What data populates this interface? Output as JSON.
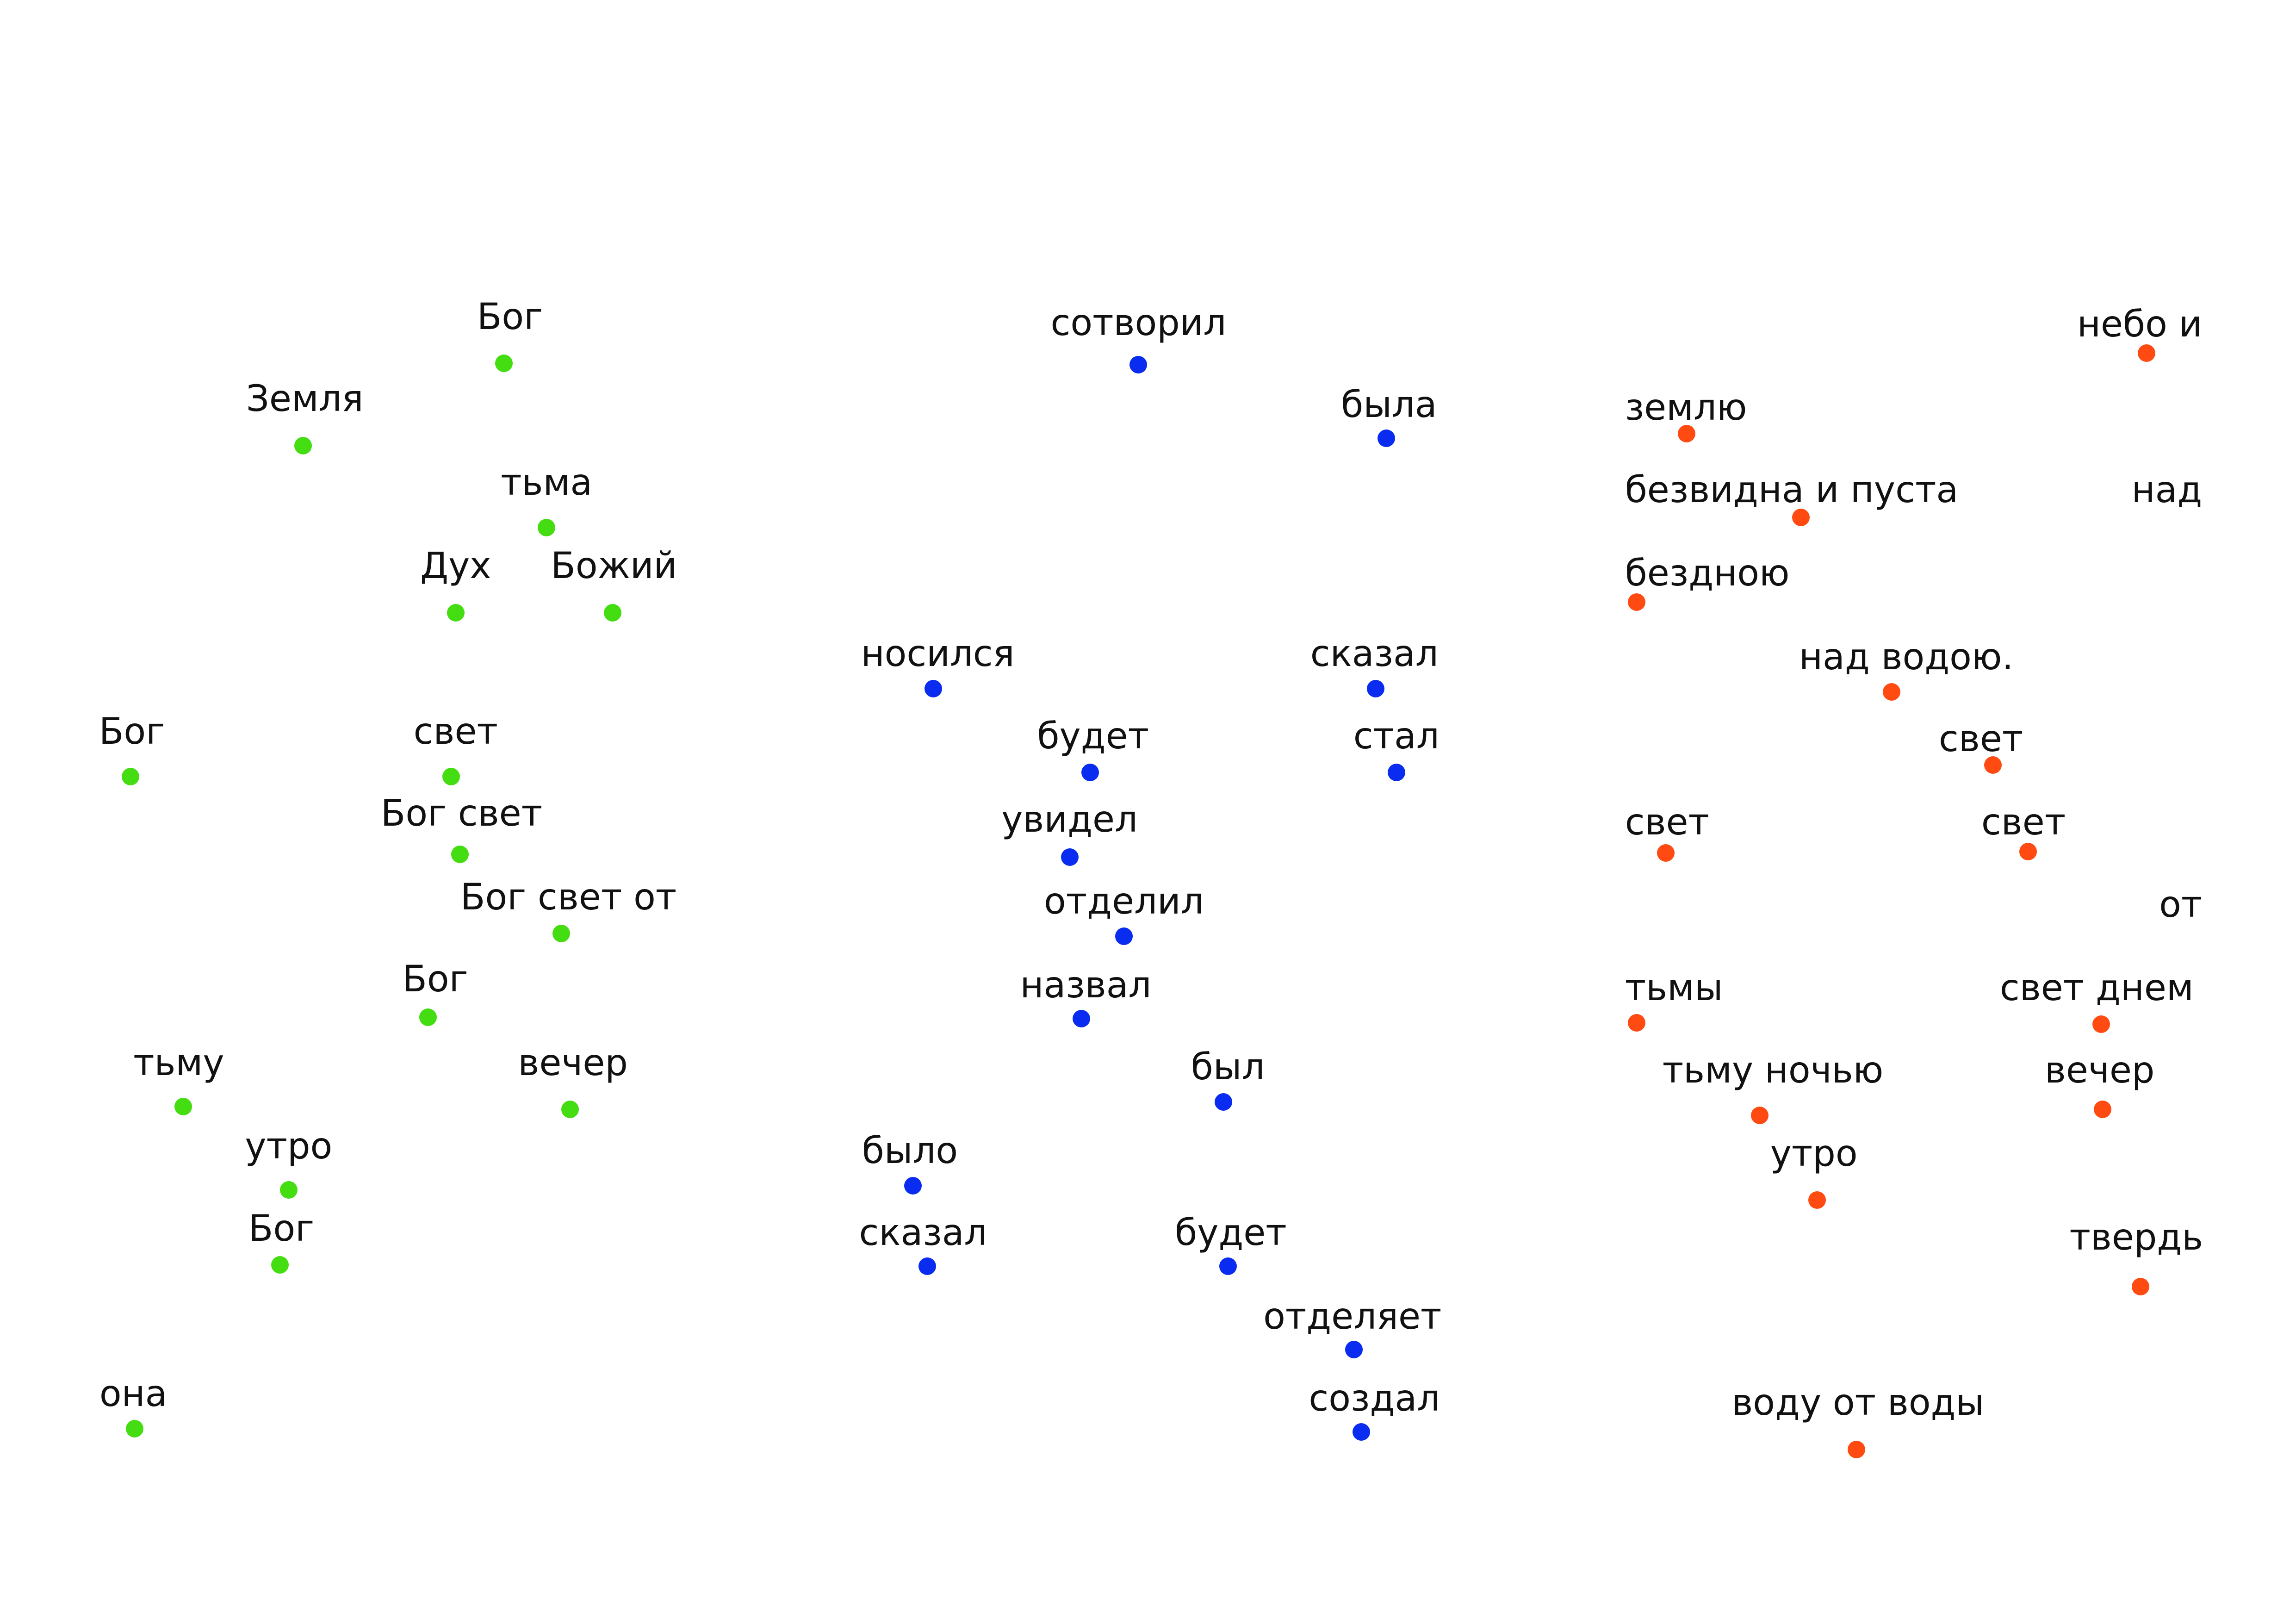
{
  "colors": {
    "nouns": "#44dd11",
    "verbs": "#0a2cf0",
    "others": "#ff4a12",
    "text": "#111111"
  },
  "columns": [
    {
      "color_key": "nouns",
      "items": [
        {
          "text": "Бог"
        },
        {
          "text": "Земля"
        },
        {
          "text": "тьма"
        },
        {
          "text": "Дух"
        },
        {
          "text": "Божий"
        },
        {
          "text": "Бог"
        },
        {
          "text": "свет"
        },
        {
          "text": "Бог свет"
        },
        {
          "text": "Бог  свет  от"
        },
        {
          "text": "Бог"
        },
        {
          "text": "тьму"
        },
        {
          "text": "вечер"
        },
        {
          "text": "утро"
        },
        {
          "text": "Бог"
        },
        {
          "text": "она"
        }
      ]
    },
    {
      "color_key": "verbs",
      "items": [
        {
          "text": "сотворил"
        },
        {
          "text": "была"
        },
        {
          "text": "носился"
        },
        {
          "text": "сказал"
        },
        {
          "text": "будет"
        },
        {
          "text": "стал"
        },
        {
          "text": "увидел"
        },
        {
          "text": "отделил"
        },
        {
          "text": "назвал"
        },
        {
          "text": "был"
        },
        {
          "text": "было"
        },
        {
          "text": "сказал"
        },
        {
          "text": "будет"
        },
        {
          "text": "отделяет"
        },
        {
          "text": "создал"
        }
      ]
    },
    {
      "color_key": "others",
      "items": [
        {
          "text": "небо и"
        },
        {
          "text": "землю"
        },
        {
          "text": "безвидна  и  пуста"
        },
        {
          "text": "над"
        },
        {
          "text": "бездною"
        },
        {
          "text": "над  водою."
        },
        {
          "text": "свет"
        },
        {
          "text": "свет"
        },
        {
          "text": "свет"
        },
        {
          "text": "от"
        },
        {
          "text": "тьмы"
        },
        {
          "text": "свет днем"
        },
        {
          "text": "тьму  ночью"
        },
        {
          "text": "вечер"
        },
        {
          "text": "утро"
        },
        {
          "text": "твердь"
        },
        {
          "text": "воду   от   воды"
        }
      ]
    }
  ]
}
